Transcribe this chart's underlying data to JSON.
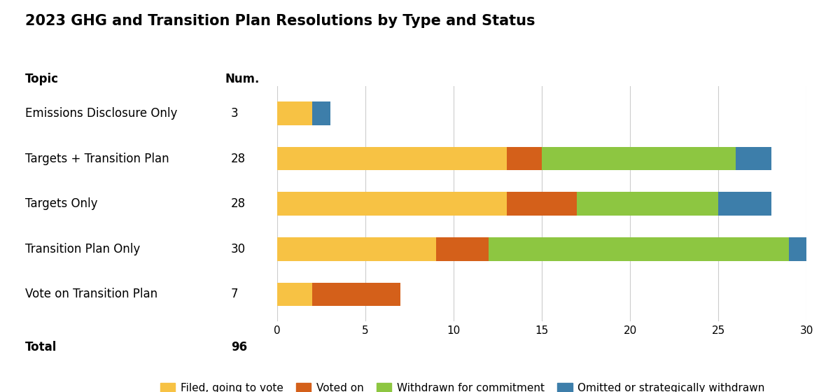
{
  "title": "2023 GHG and Transition Plan Resolutions by Type and Status",
  "categories": [
    "Emissions Disclosure Only",
    "Targets + Transition Plan",
    "Targets Only",
    "Transition Plan Only",
    "Vote on Transition Plan"
  ],
  "nums": [
    "3",
    "28",
    "28",
    "30",
    "7"
  ],
  "total_label": "Total",
  "total_num": "96",
  "segments": {
    "Filed, going to vote": [
      2,
      13,
      13,
      9,
      2
    ],
    "Voted on": [
      0,
      2,
      4,
      3,
      5
    ],
    "Withdrawn for commitment": [
      0,
      11,
      8,
      17,
      0
    ],
    "Omitted or strategically withdrawn": [
      1,
      2,
      3,
      1,
      0
    ]
  },
  "colors": {
    "Filed, going to vote": "#F7C244",
    "Voted on": "#D4601A",
    "Withdrawn for commitment": "#8DC641",
    "Omitted or strategically withdrawn": "#3D7EAA"
  },
  "xlim": [
    0,
    30
  ],
  "xticks": [
    0,
    5,
    10,
    15,
    20,
    25,
    30
  ],
  "topic_header": "Topic",
  "num_header": "Num.",
  "background_color": "#ffffff",
  "bar_height": 0.52,
  "title_fontsize": 15,
  "axis_fontsize": 11,
  "label_fontsize": 12,
  "header_fontsize": 12,
  "legend_fontsize": 11
}
